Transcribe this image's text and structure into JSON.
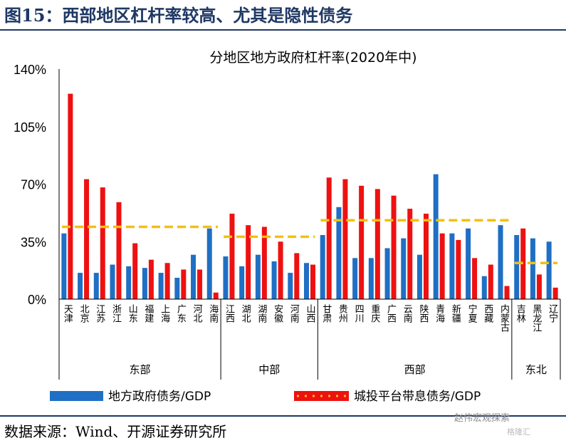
{
  "figure": {
    "title": "图15：西部地区杠杆率较高、尤其是隐性债务",
    "source": "数据来源：Wind、开源证券研究所",
    "watermark": "赵伟宏观探索",
    "watermark2": "格隆汇"
  },
  "chart_data": {
    "type": "bar",
    "title": "分地区地方政府杠杆率(2020年中)",
    "ylim": [
      0,
      140
    ],
    "yticks": [
      "0%",
      "35%",
      "70%",
      "105%",
      "140%"
    ],
    "ytick_values": [
      0,
      35,
      70,
      105,
      140
    ],
    "categories": [
      "天津",
      "北京",
      "江苏",
      "浙江",
      "山东",
      "福建",
      "上海",
      "广东",
      "河北",
      "海南",
      "江西",
      "湖北",
      "湖南",
      "安徽",
      "河南",
      "山西",
      "甘肃",
      "贵州",
      "四川",
      "重庆",
      "广西",
      "云南",
      "陕西",
      "青海",
      "新疆",
      "宁夏",
      "西藏",
      "内蒙古",
      "吉林",
      "黑龙江",
      "辽宁"
    ],
    "series": [
      {
        "name": "地方政府债务/GDP",
        "color": "#1f6fc4",
        "values": [
          40,
          16,
          16,
          21,
          20,
          19,
          16,
          13,
          27,
          43,
          26,
          20,
          27,
          23,
          16,
          22,
          39,
          56,
          25,
          25,
          31,
          37,
          27,
          76,
          40,
          43,
          14,
          45,
          39,
          37,
          35
        ]
      },
      {
        "name": "城投平台带息债务/GDP",
        "color": "#ee1111",
        "values": [
          125,
          73,
          68,
          59,
          34,
          24,
          22,
          18,
          18,
          4,
          52,
          45,
          44,
          35,
          28,
          21,
          74,
          73,
          69,
          67,
          63,
          55,
          52,
          40,
          36,
          25,
          21,
          8,
          43,
          15,
          7
        ]
      }
    ],
    "regions": [
      {
        "name": "东部",
        "start": 0,
        "end": 9,
        "avg": 44
      },
      {
        "name": "中部",
        "start": 10,
        "end": 15,
        "avg": 38
      },
      {
        "name": "西部",
        "start": 16,
        "end": 27,
        "avg": 48
      },
      {
        "name": "东北",
        "start": 28,
        "end": 30,
        "avg": 22
      }
    ],
    "avg_line_color": "#f2c012",
    "legend": [
      "地方政府债务/GDP",
      "城投平台带息债务/GDP"
    ]
  }
}
